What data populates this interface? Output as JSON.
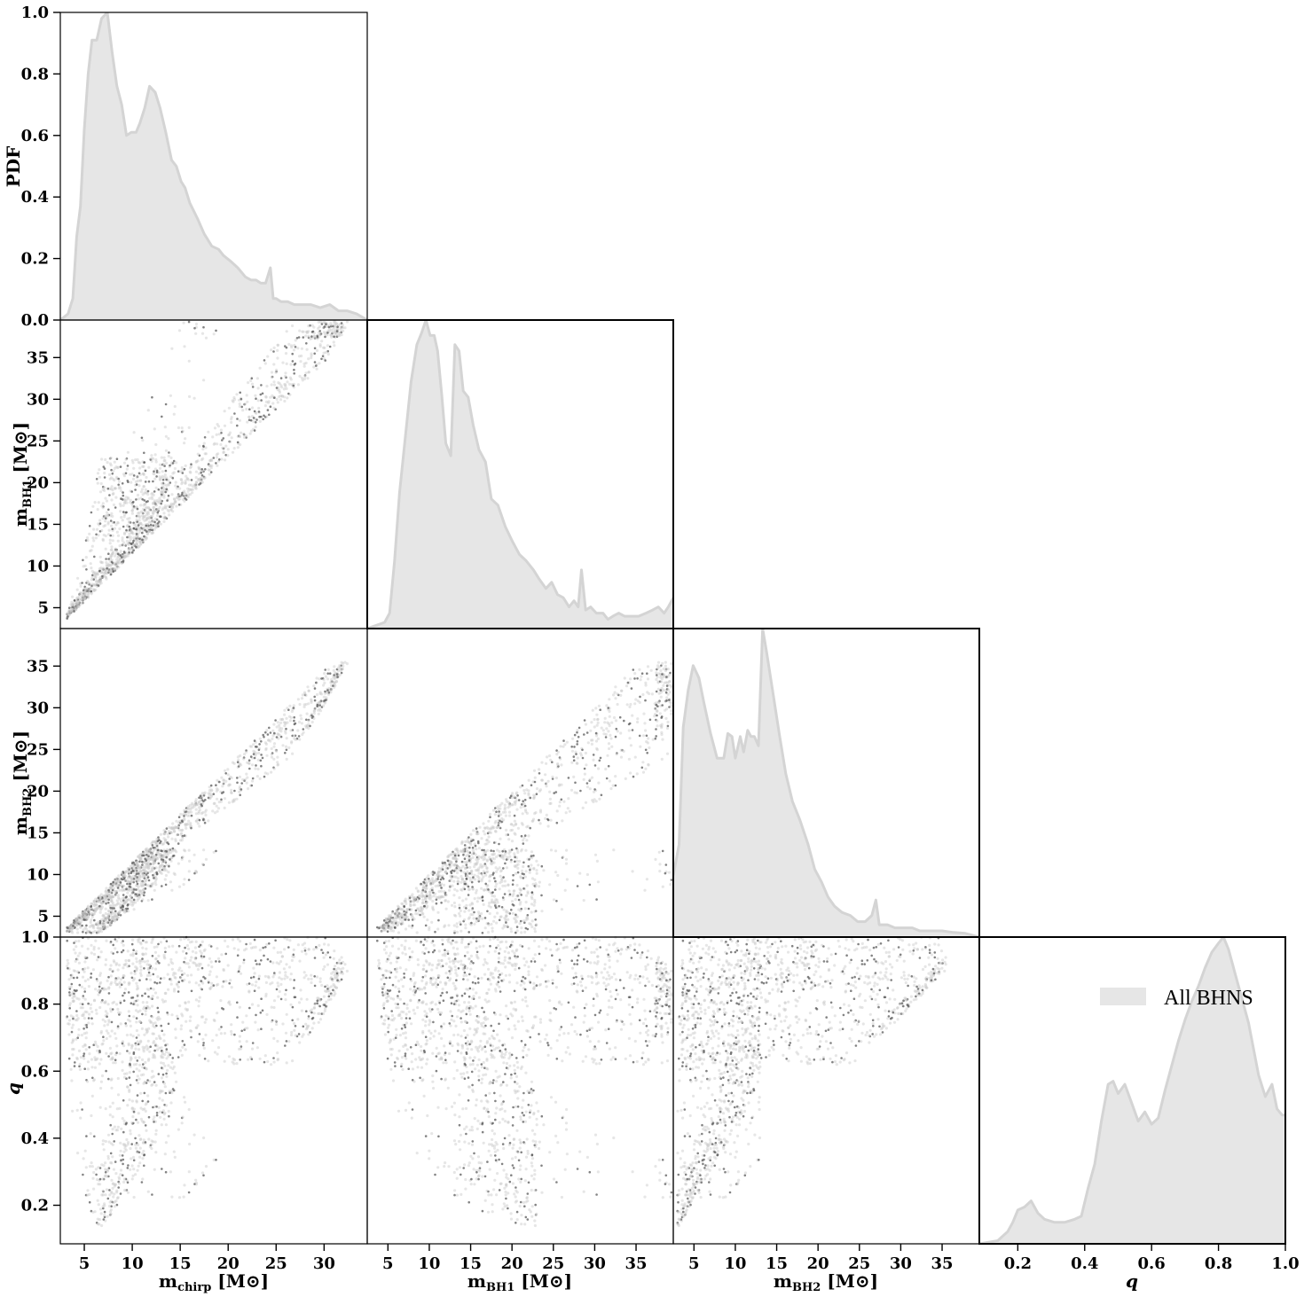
{
  "colors": {
    "fill": "#e6e6e6",
    "line": "#d4d4d4",
    "scatter_dark": "#5a5a5a",
    "scatter_light": "#c8c8c8",
    "frame": "#000000"
  },
  "legend": {
    "label": "All BHNS",
    "placement": "upper-right of q panel"
  },
  "chart_data": [
    {
      "type": "area",
      "panel": "mchirp-pdf",
      "xlabel": "m_chirp [M⊙]",
      "ylabel": "PDF",
      "xlim": [
        2.5,
        34.5
      ],
      "ylim": [
        0,
        1.0
      ],
      "xticks": [
        "5",
        "10",
        "15",
        "20",
        "25",
        "30"
      ],
      "yticks": [
        "0.0",
        "0.2",
        "0.4",
        "0.6",
        "0.8",
        "1.0"
      ],
      "x": [
        2.5,
        3.3,
        3.8,
        4.2,
        4.6,
        5.0,
        5.4,
        5.8,
        6.3,
        6.8,
        7.4,
        7.9,
        8.4,
        8.9,
        9.4,
        9.9,
        10.4,
        10.8,
        11.3,
        11.8,
        12.4,
        12.9,
        13.5,
        14.1,
        14.6,
        15.1,
        15.5,
        16.0,
        16.8,
        17.5,
        18.3,
        19.0,
        19.5,
        20.3,
        21.0,
        21.8,
        22.4,
        22.9,
        23.4,
        23.9,
        24.4,
        24.7,
        25.0,
        25.5,
        26.2,
        26.9,
        27.8,
        28.6,
        29.6,
        30.6,
        31.5,
        32.4,
        33.4,
        34.5
      ],
      "y": [
        0.0,
        0.02,
        0.07,
        0.27,
        0.37,
        0.62,
        0.8,
        0.91,
        0.91,
        0.98,
        1.0,
        0.87,
        0.76,
        0.7,
        0.6,
        0.61,
        0.61,
        0.64,
        0.69,
        0.76,
        0.74,
        0.69,
        0.61,
        0.52,
        0.5,
        0.45,
        0.43,
        0.38,
        0.33,
        0.28,
        0.24,
        0.23,
        0.21,
        0.19,
        0.17,
        0.14,
        0.13,
        0.13,
        0.12,
        0.12,
        0.17,
        0.07,
        0.07,
        0.06,
        0.06,
        0.05,
        0.05,
        0.05,
        0.04,
        0.05,
        0.03,
        0.03,
        0.02,
        0.0
      ]
    },
    {
      "type": "area",
      "panel": "mbh1-pdf",
      "xlabel": "m_BH1 [M⊙]",
      "xlim": [
        2.5,
        39.5
      ],
      "ylim": [
        0,
        1.0
      ],
      "xticks": [
        "5",
        "10",
        "15",
        "20",
        "25",
        "30",
        "35"
      ],
      "x": [
        2.5,
        4.6,
        5.2,
        5.8,
        6.4,
        7.1,
        7.8,
        8.5,
        9.1,
        9.6,
        10.1,
        10.6,
        11.0,
        11.5,
        12.0,
        12.6,
        13.1,
        13.6,
        14.1,
        14.7,
        15.3,
        16.0,
        16.8,
        17.5,
        18.3,
        19.2,
        20.1,
        20.9,
        21.7,
        22.6,
        23.3,
        24.1,
        24.8,
        25.5,
        26.2,
        26.9,
        27.5,
        28.0,
        28.4,
        28.9,
        29.5,
        30.2,
        31.0,
        31.6,
        32.2,
        32.9,
        33.6,
        34.4,
        35.3,
        36.2,
        37.0,
        37.7,
        38.4,
        38.9,
        39.5
      ],
      "y": [
        0.0,
        0.02,
        0.05,
        0.22,
        0.44,
        0.62,
        0.8,
        0.92,
        0.96,
        1.0,
        0.95,
        0.95,
        0.9,
        0.76,
        0.6,
        0.56,
        0.92,
        0.9,
        0.77,
        0.75,
        0.66,
        0.58,
        0.54,
        0.42,
        0.4,
        0.33,
        0.28,
        0.24,
        0.22,
        0.19,
        0.16,
        0.13,
        0.15,
        0.11,
        0.1,
        0.07,
        0.09,
        0.07,
        0.19,
        0.06,
        0.07,
        0.05,
        0.05,
        0.03,
        0.04,
        0.05,
        0.04,
        0.04,
        0.04,
        0.05,
        0.06,
        0.07,
        0.05,
        0.07,
        0.1
      ]
    },
    {
      "type": "area",
      "panel": "mbh2-pdf",
      "xlabel": "m_BH2 [M⊙]",
      "xlim": [
        2.5,
        39.5
      ],
      "ylim": [
        0,
        1.0
      ],
      "xticks": [
        "5",
        "10",
        "15",
        "20",
        "25",
        "30",
        "35"
      ],
      "x": [
        2.5,
        3.2,
        3.7,
        4.3,
        4.9,
        5.6,
        6.2,
        7.0,
        7.8,
        8.6,
        9.1,
        9.6,
        10.0,
        10.6,
        11.0,
        11.5,
        11.9,
        12.3,
        12.8,
        13.3,
        13.8,
        14.5,
        15.3,
        16.1,
        16.9,
        17.8,
        18.8,
        19.6,
        20.4,
        21.2,
        22.0,
        22.9,
        23.9,
        24.8,
        25.7,
        26.5,
        27.0,
        27.4,
        27.9,
        28.4,
        29.3,
        30.4,
        31.4,
        32.3,
        33.0,
        33.8,
        35.0,
        36.4,
        37.8,
        39.5
      ],
      "y": [
        0.2,
        0.3,
        0.68,
        0.8,
        0.88,
        0.84,
        0.76,
        0.66,
        0.58,
        0.58,
        0.66,
        0.65,
        0.58,
        0.65,
        0.6,
        0.67,
        0.65,
        0.65,
        0.62,
        1.0,
        0.92,
        0.8,
        0.66,
        0.53,
        0.44,
        0.38,
        0.3,
        0.22,
        0.18,
        0.13,
        0.1,
        0.08,
        0.07,
        0.05,
        0.05,
        0.07,
        0.12,
        0.04,
        0.04,
        0.04,
        0.03,
        0.03,
        0.03,
        0.02,
        0.02,
        0.02,
        0.02,
        0.015,
        0.012,
        0.0
      ]
    },
    {
      "type": "area",
      "panel": "q-pdf",
      "xlabel": "q",
      "xlim": [
        0.085,
        1.0
      ],
      "ylim": [
        0,
        1.0
      ],
      "xticks": [
        "0.2",
        "0.4",
        "0.6",
        "0.8",
        "1.0"
      ],
      "x": [
        0.085,
        0.14,
        0.17,
        0.185,
        0.2,
        0.22,
        0.24,
        0.26,
        0.28,
        0.31,
        0.34,
        0.37,
        0.39,
        0.41,
        0.43,
        0.45,
        0.47,
        0.485,
        0.5,
        0.52,
        0.54,
        0.56,
        0.58,
        0.6,
        0.62,
        0.64,
        0.66,
        0.68,
        0.7,
        0.72,
        0.74,
        0.76,
        0.78,
        0.8,
        0.815,
        0.83,
        0.85,
        0.87,
        0.89,
        0.92,
        0.94,
        0.96,
        0.975,
        0.99,
        1.0
      ],
      "y": [
        0.0,
        0.01,
        0.04,
        0.07,
        0.11,
        0.12,
        0.14,
        0.1,
        0.08,
        0.07,
        0.07,
        0.08,
        0.09,
        0.18,
        0.26,
        0.4,
        0.52,
        0.53,
        0.49,
        0.52,
        0.46,
        0.4,
        0.43,
        0.39,
        0.41,
        0.5,
        0.58,
        0.66,
        0.73,
        0.79,
        0.84,
        0.9,
        0.95,
        0.98,
        1.0,
        0.96,
        0.88,
        0.8,
        0.72,
        0.55,
        0.48,
        0.52,
        0.44,
        0.42,
        0.42
      ]
    },
    {
      "type": "scatter",
      "panel": "mchirp-vs-mbh1",
      "xlabel": "",
      "ylabel": "m_BH1 [M⊙]",
      "xlim": [
        2.5,
        34.5
      ],
      "ylim": [
        2.5,
        39.5
      ],
      "yticks": [
        "5",
        "10",
        "15",
        "20",
        "25",
        "30",
        "35"
      ]
    },
    {
      "type": "scatter",
      "panel": "mchirp-vs-mbh2",
      "xlabel": "",
      "ylabel": "m_BH2 [M⊙]",
      "xlim": [
        2.5,
        34.5
      ],
      "ylim": [
        2.5,
        39.5
      ],
      "yticks": [
        "5",
        "10",
        "15",
        "20",
        "25",
        "30",
        "35"
      ]
    },
    {
      "type": "scatter",
      "panel": "mbh1-vs-mbh2",
      "xlim": [
        2.5,
        39.5
      ],
      "ylim": [
        2.5,
        39.5
      ]
    },
    {
      "type": "scatter",
      "panel": "mchirp-vs-q",
      "xlabel": "m_chirp [M⊙]",
      "ylabel": "q",
      "xlim": [
        2.5,
        34.5
      ],
      "ylim": [
        0.085,
        1.0
      ],
      "yticks": [
        "0.2",
        "0.4",
        "0.6",
        "0.8",
        "1.0"
      ]
    },
    {
      "type": "scatter",
      "panel": "mbh1-vs-q",
      "xlabel": "m_BH1 [M⊙]",
      "xlim": [
        2.5,
        39.5
      ],
      "ylim": [
        0.085,
        1.0
      ]
    },
    {
      "type": "scatter",
      "panel": "mbh2-vs-q",
      "xlabel": "m_BH2 [M⊙]",
      "xlim": [
        2.5,
        39.5
      ],
      "ylim": [
        0.085,
        1.0
      ]
    }
  ],
  "labels": {
    "pdf": "PDF",
    "m": "m",
    "chirp_sub": "chirp",
    "bh1_sub": "BH1",
    "bh2_sub": "BH2",
    "unit": " [M⊙]",
    "q": "q"
  }
}
